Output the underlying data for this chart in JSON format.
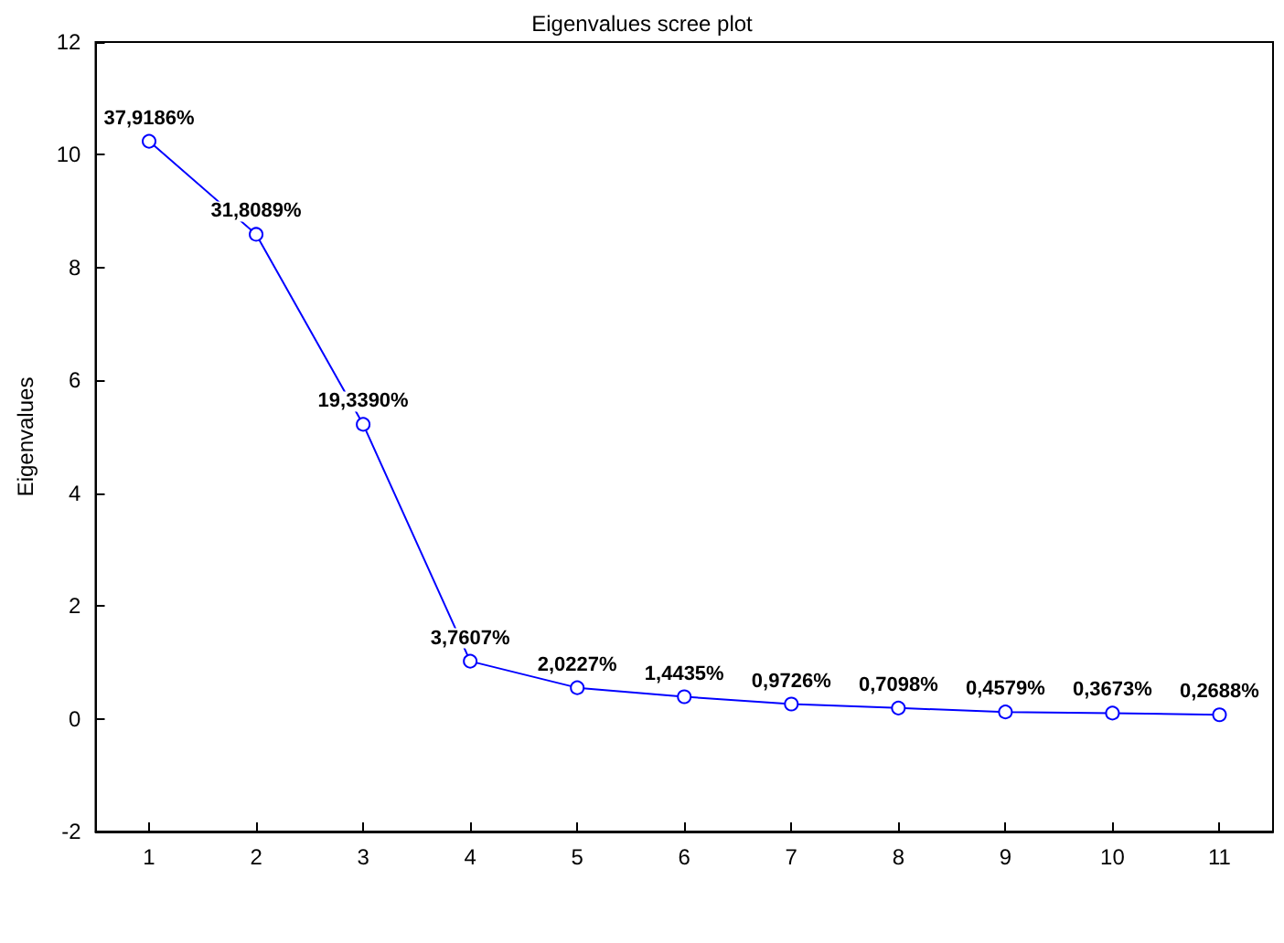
{
  "chart_data": {
    "type": "line",
    "title": "Eigenvalues scree plot",
    "ylabel": "Eigenvalues",
    "categories": [
      "1",
      "2",
      "3",
      "4",
      "5",
      "6",
      "7",
      "8",
      "9",
      "10",
      "11"
    ],
    "series": [
      {
        "color": "#0000ff",
        "values": [
          10.24,
          8.59,
          5.22,
          1.02,
          0.55,
          0.39,
          0.26,
          0.19,
          0.12,
          0.1,
          0.07
        ]
      }
    ],
    "annotations": [
      {
        "text": "37,9186%",
        "x": "1",
        "y": 10.24
      },
      {
        "text": "31,8089%",
        "x": "2",
        "y": 8.59
      },
      {
        "text": "19,3390%",
        "x": "3",
        "y": 5.22
      },
      {
        "text": "3,7607%",
        "x": "4",
        "y": 1.02
      },
      {
        "text": "2,0227%",
        "x": "5",
        "y": 0.55
      },
      {
        "text": "1,4435%",
        "x": "6",
        "y": 0.39
      },
      {
        "text": "0,9726%",
        "x": "7",
        "y": 0.26
      },
      {
        "text": "0,7098%",
        "x": "8",
        "y": 0.19
      },
      {
        "text": "0,4579%",
        "x": "9",
        "y": 0.12
      },
      {
        "text": "0,3673%",
        "x": "10",
        "y": 0.1
      },
      {
        "text": "0,2688%",
        "x": "11",
        "y": 0.07
      }
    ],
    "ylim": [
      -2,
      12
    ],
    "yticks": [
      -2,
      0,
      2,
      4,
      6,
      8,
      10,
      12
    ],
    "grid": false,
    "marker": "circle",
    "line_style": "solid"
  }
}
